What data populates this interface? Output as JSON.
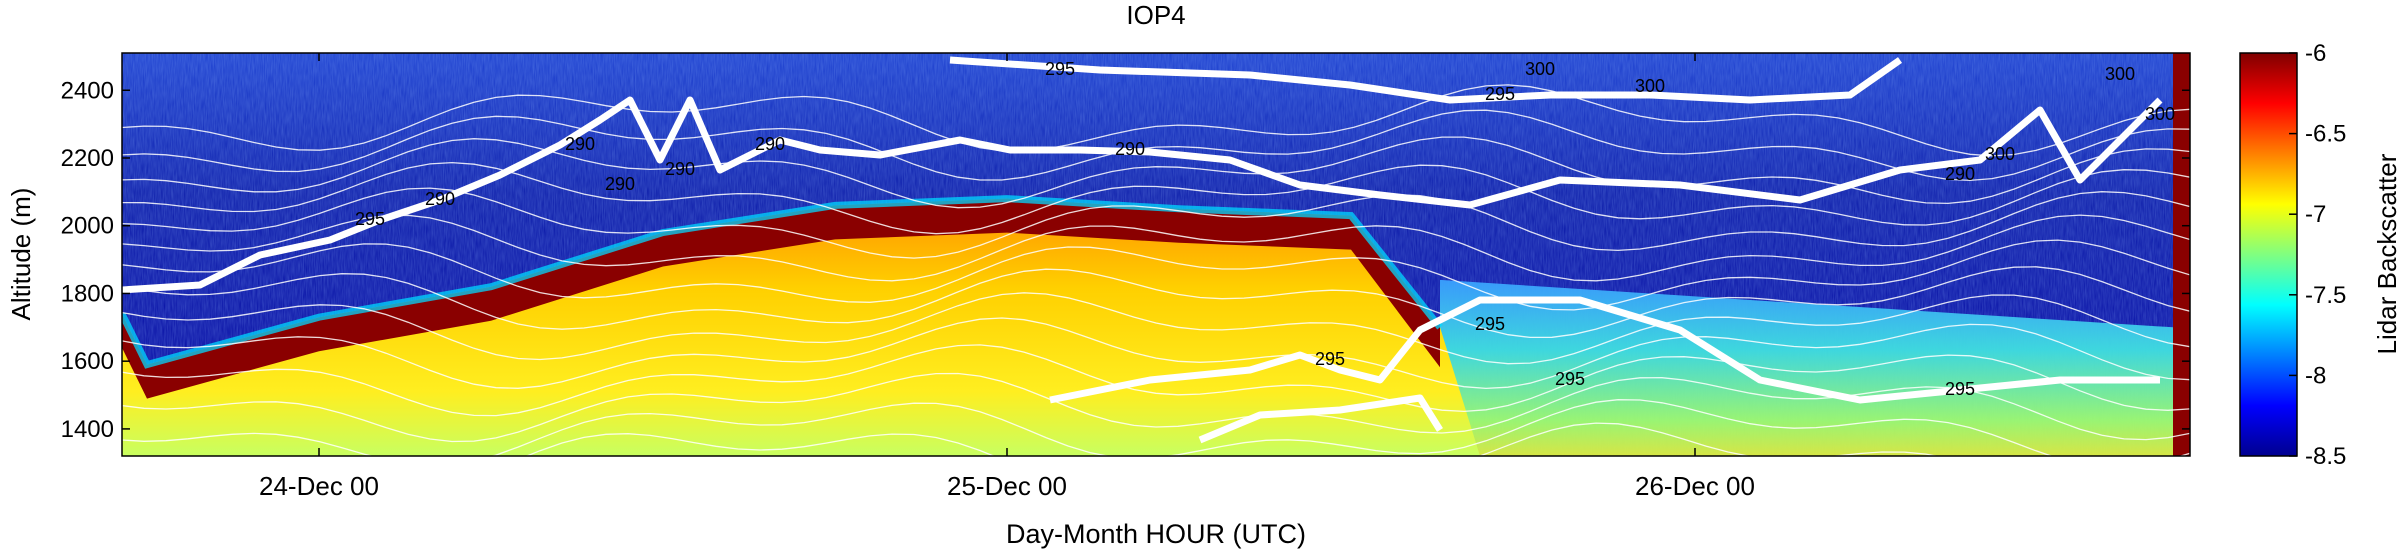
{
  "chart_data": {
    "type": "heatmap",
    "title": "IOP4",
    "xlabel": "Day-Month HOUR (UTC)",
    "ylabel": "Altitude (m)",
    "colorbar_label": "Lidar Backscatter",
    "x_tick_labels": [
      "24-Dec 00",
      "25-Dec 00",
      "26-Dec 00"
    ],
    "y_ticks": [
      1400,
      1600,
      1800,
      2000,
      2200,
      2400
    ],
    "ylim": [
      1320,
      2510
    ],
    "colorbar_ticks": [
      -6,
      -6.5,
      -7,
      -7.5,
      -8,
      -8.5
    ],
    "colorbar_range": [
      -8.5,
      -6
    ],
    "colormap": [
      "#00008f",
      "#0000ff",
      "#0080ff",
      "#00ffff",
      "#80ff80",
      "#ffff00",
      "#ff8000",
      "#ff0000",
      "#800000"
    ],
    "contour_color": "#ffffff",
    "contour_labels": [
      "290",
      "290",
      "290",
      "290",
      "290",
      "290",
      "290",
      "295",
      "295",
      "295",
      "295",
      "295",
      "295",
      "295",
      "300",
      "300",
      "300",
      "300",
      "300"
    ],
    "layer_top_altitude": [
      [
        -4.0,
        1740
      ],
      [
        -3.0,
        1660
      ],
      [
        -2.0,
        1560
      ],
      [
        -1.0,
        1590
      ],
      [
        0.0,
        1730
      ],
      [
        1.0,
        1820
      ],
      [
        2.0,
        1980
      ],
      [
        3.0,
        2060
      ],
      [
        4.0,
        2080
      ],
      [
        5.0,
        2050
      ],
      [
        6.0,
        2030
      ],
      [
        7.0,
        2010
      ],
      [
        8.0,
        1860
      ],
      [
        9.0,
        1790
      ],
      [
        10.0,
        1740
      ]
    ]
  },
  "axes": {
    "grid": false,
    "legend": "none"
  }
}
